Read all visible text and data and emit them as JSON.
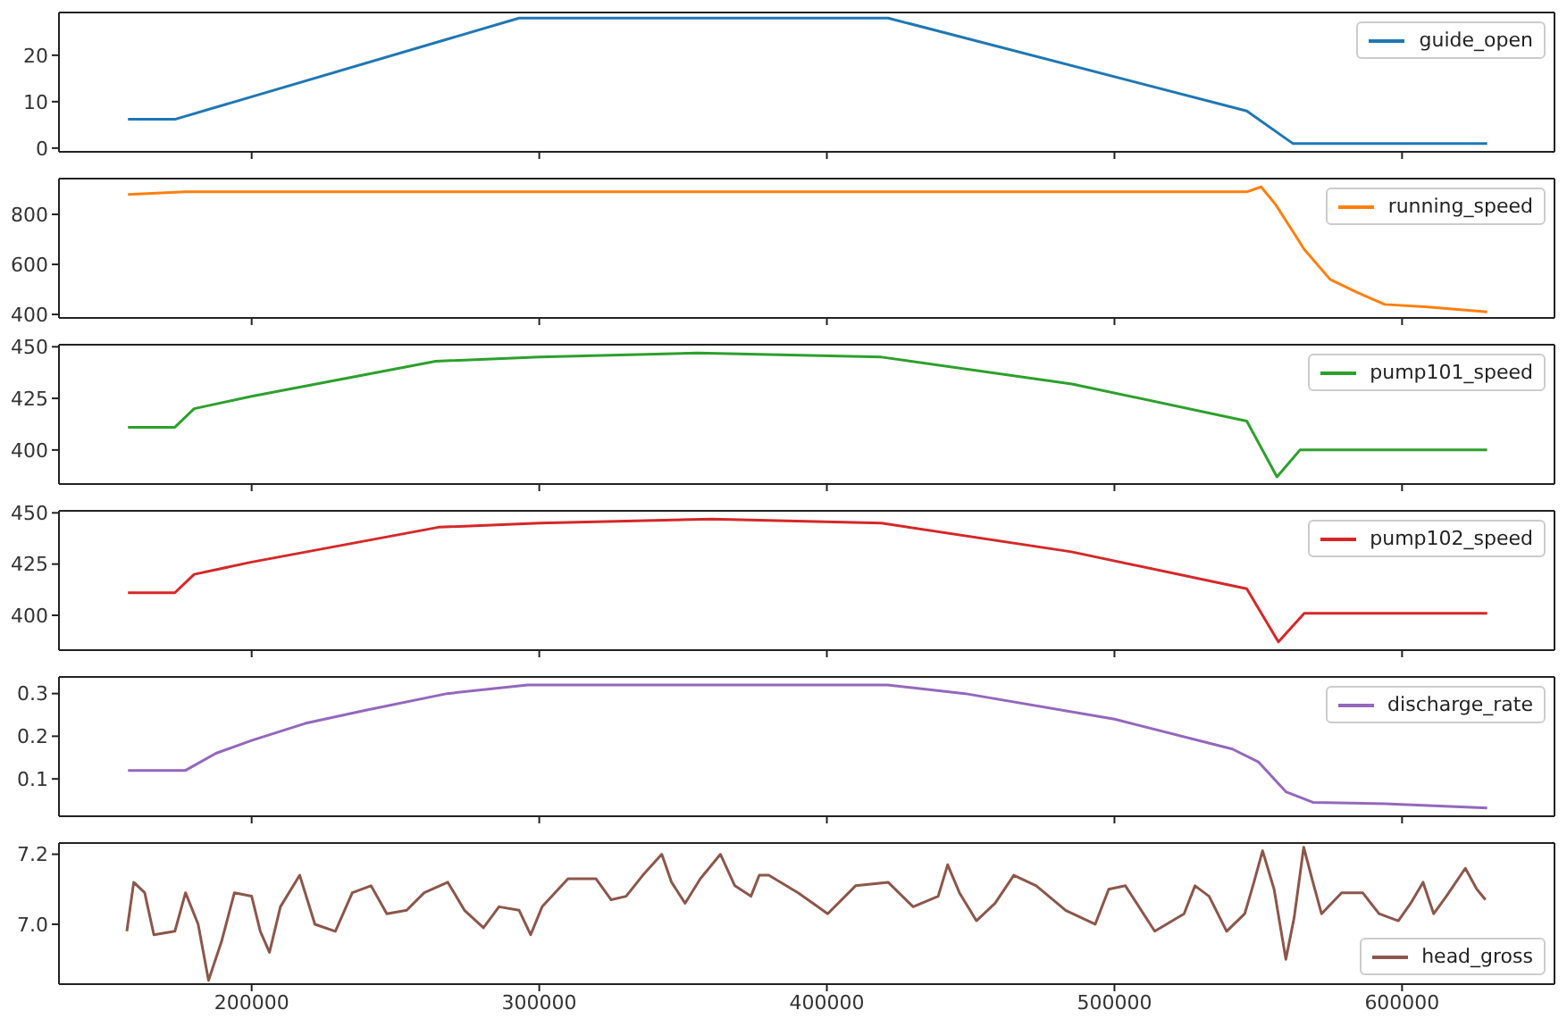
{
  "chart_data": [
    {
      "type": "line",
      "xlim": [
        133000,
        653000
      ],
      "xticks": [
        200000,
        300000,
        400000,
        500000,
        600000
      ],
      "ylim": [
        -0.8,
        29.2
      ],
      "yticks": [
        0,
        10,
        20
      ],
      "tick_labels": "y",
      "legend": "top right",
      "series": [
        {
          "name": "guide_open",
          "color": "#1f77b4",
          "x": [
            157000,
            173300,
            293000,
            421300,
            546000,
            562000,
            629600
          ],
          "values": [
            6.2,
            6.2,
            28,
            28,
            8,
            1,
            1
          ]
        }
      ]
    },
    {
      "type": "line",
      "xlim": [
        133000,
        653000
      ],
      "xticks": [
        200000,
        300000,
        400000,
        500000,
        600000
      ],
      "ylim": [
        386,
        943
      ],
      "yticks": [
        400,
        600,
        800
      ],
      "tick_labels": "y",
      "legend": "top right",
      "series": [
        {
          "name": "running_speed",
          "color": "#ff7f0e",
          "x": [
            157000,
            177000,
            546000,
            551000,
            556000,
            561000,
            566000,
            575000,
            584000,
            594000,
            609000,
            629600
          ],
          "values": [
            880,
            890,
            890,
            910,
            840,
            750,
            660,
            540,
            490,
            440,
            430,
            410
          ]
        }
      ]
    },
    {
      "type": "line",
      "xlim": [
        133000,
        653000
      ],
      "xticks": [
        200000,
        300000,
        400000,
        500000,
        600000
      ],
      "ylim": [
        383.5,
        451
      ],
      "yticks": [
        400,
        425,
        450
      ],
      "tick_labels": "y",
      "legend": "top right",
      "series": [
        {
          "name": "pump101_speed",
          "color": "#2ca02c",
          "x": [
            157000,
            173300,
            180000,
            200000,
            264000,
            300000,
            355000,
            419000,
            485200,
            546000,
            556500,
            564500,
            629600
          ],
          "values": [
            411,
            411,
            420,
            426,
            443,
            445,
            447,
            445,
            432,
            414,
            387,
            400,
            400
          ]
        }
      ]
    },
    {
      "type": "line",
      "xlim": [
        133000,
        653000
      ],
      "xticks": [
        200000,
        300000,
        400000,
        500000,
        600000
      ],
      "ylim": [
        383,
        451
      ],
      "yticks": [
        400,
        425,
        450
      ],
      "tick_labels": "y",
      "legend": "top right",
      "series": [
        {
          "name": "pump102_speed",
          "color": "#d62728",
          "x": [
            157000,
            173300,
            180000,
            200000,
            265000,
            300000,
            360000,
            419000,
            485000,
            546000,
            557000,
            566000,
            629600
          ],
          "values": [
            411,
            411,
            420,
            426,
            443,
            445,
            447,
            445,
            431,
            413,
            387,
            401,
            401
          ]
        }
      ]
    },
    {
      "type": "line",
      "xlim": [
        133000,
        653000
      ],
      "xticks": [
        200000,
        300000,
        400000,
        500000,
        600000
      ],
      "ylim": [
        0.0125,
        0.339
      ],
      "yticks": [
        0.1,
        0.2,
        0.3
      ],
      "tick_labels": "y",
      "legend": "top right",
      "series": [
        {
          "name": "discharge_rate",
          "color": "#9467bd",
          "x": [
            157000,
            177000,
            187600,
            200000,
            218600,
            239000,
            268000,
            296000,
            421000,
            448000,
            500000,
            541000,
            550000,
            559600,
            569000,
            594000,
            629600
          ],
          "values": [
            0.12,
            0.12,
            0.16,
            0.19,
            0.23,
            0.26,
            0.3,
            0.32,
            0.32,
            0.3,
            0.24,
            0.17,
            0.14,
            0.07,
            0.045,
            0.042,
            0.032
          ]
        }
      ]
    },
    {
      "type": "line",
      "xlim": [
        133000,
        653000
      ],
      "xticks": [
        200000,
        300000,
        400000,
        500000,
        600000
      ],
      "ylim": [
        6.829,
        7.232
      ],
      "yticks": [
        {
          "value": 7,
          "label": "7.0"
        },
        7.2
      ],
      "legend": "bottom right",
      "series": [
        {
          "name": "head_gross",
          "color": "#8c564b",
          "x": [
            156600,
            159000,
            162800,
            166000,
            173300,
            177000,
            181400,
            185000,
            189500,
            194000,
            200000,
            203000,
            206200,
            210000,
            216700,
            222000,
            229100,
            235000,
            241500,
            247000,
            253900,
            260000,
            268200,
            274000,
            280600,
            286000,
            293000,
            297000,
            301000,
            310000,
            319700,
            325000,
            330200,
            336000,
            342600,
            346000,
            350700,
            356000,
            363000,
            368000,
            373600,
            376500,
            379800,
            390000,
            400300,
            410000,
            421300,
            430000,
            438700,
            442000,
            446100,
            452000,
            458500,
            465000,
            472800,
            483000,
            493300,
            498000,
            503800,
            514000,
            524200,
            528000,
            532900,
            539000,
            545300,
            548500,
            551500,
            555500,
            559600,
            562500,
            565800,
            569000,
            572000,
            579000,
            586300,
            592000,
            598700,
            603000,
            607300,
            611000,
            615400,
            622000,
            626000,
            629000
          ],
          "values": [
            6.98,
            7.12,
            7.09,
            6.97,
            6.98,
            7.09,
            7.0,
            6.84,
            6.95,
            7.09,
            7.08,
            6.98,
            6.92,
            7.05,
            7.14,
            7.0,
            6.98,
            7.09,
            7.11,
            7.03,
            7.04,
            7.09,
            7.12,
            7.04,
            6.99,
            7.05,
            7.04,
            6.97,
            7.05,
            7.13,
            7.13,
            7.07,
            7.08,
            7.14,
            7.2,
            7.12,
            7.06,
            7.13,
            7.2,
            7.11,
            7.08,
            7.14,
            7.14,
            7.09,
            7.03,
            7.11,
            7.12,
            7.05,
            7.08,
            7.17,
            7.09,
            7.01,
            7.06,
            7.14,
            7.11,
            7.04,
            7.0,
            7.1,
            7.11,
            6.98,
            7.03,
            7.11,
            7.08,
            6.98,
            7.03,
            7.12,
            7.21,
            7.1,
            6.9,
            7.02,
            7.22,
            7.12,
            7.03,
            7.09,
            7.09,
            7.03,
            7.01,
            7.06,
            7.12,
            7.03,
            7.08,
            7.16,
            7.1,
            7.07
          ]
        }
      ]
    }
  ]
}
